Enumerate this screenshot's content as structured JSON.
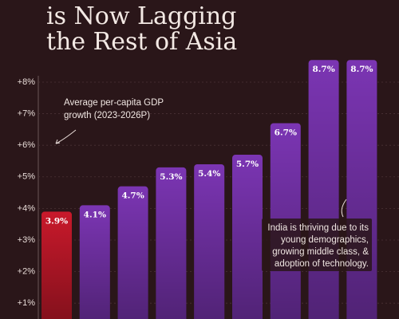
{
  "chart_data": {
    "type": "bar",
    "title": [
      "is Now Lagging",
      "the Rest of Asia"
    ],
    "categories": [
      null,
      null,
      null,
      null,
      null,
      null,
      null,
      null,
      null
    ],
    "values": [
      3.9,
      4.1,
      4.7,
      5.3,
      5.4,
      5.7,
      6.7,
      8.7,
      8.7
    ],
    "value_labels": [
      "3.9%",
      "4.1%",
      "4.7%",
      "5.3%",
      "5.4%",
      "5.7%",
      "6.7%",
      "8.7%",
      "8.7%"
    ],
    "colors": [
      "#c8192b",
      "#7b35b3",
      "#7b35b3",
      "#7b35b3",
      "#7b35b3",
      "#7b35b3",
      "#7b35b3",
      "#7b35b3",
      "#7b35b3"
    ],
    "ylim": [
      0.5,
      10.6
    ],
    "yticks": [
      {
        "value": 1,
        "label": "+1%"
      },
      {
        "value": 2,
        "label": "+2%"
      },
      {
        "value": 3,
        "label": "+3%"
      },
      {
        "value": 4,
        "label": "+4%"
      },
      {
        "value": 5,
        "label": "+5%"
      },
      {
        "value": 6,
        "label": "+6%"
      },
      {
        "value": 7,
        "label": "+7%"
      },
      {
        "value": 8,
        "label": "+8%"
      }
    ],
    "grid": true,
    "annotations": [
      [
        "Average per-capita GDP",
        "growth (2023-2026P)"
      ],
      [
        "India is thriving due to its",
        "young demographics,",
        "growing middle class, &",
        "adoption of technology."
      ]
    ]
  }
}
